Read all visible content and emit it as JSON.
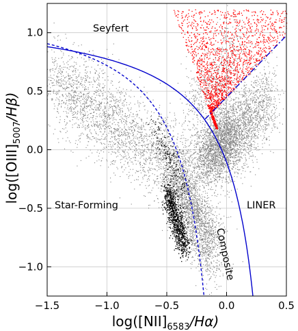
{
  "chart_data": {
    "type": "scatter",
    "title": "",
    "xlabel": "log([NII]_6583/Hα)",
    "ylabel": "log([OIII]_5007/Hβ)",
    "xlabel_parts": {
      "main": "log([NII]",
      "sub": "6583",
      "tail": "/Hα)"
    },
    "ylabel_parts": {
      "main": "log([OIII]",
      "sub": "5007",
      "tail": "/Hβ)"
    },
    "xlim": [
      -1.5,
      0.5
    ],
    "ylim": [
      -1.25,
      1.25
    ],
    "xticks": [
      -1.5,
      -1.0,
      -0.5,
      0.0,
      0.5
    ],
    "xtick_labels": [
      "−1.5",
      "−1.0",
      "−0.5",
      "0.0",
      "0.5"
    ],
    "yticks": [
      -1.0,
      -0.5,
      0.0,
      0.5,
      1.0
    ],
    "ytick_labels": [
      "−1.0",
      "−0.5",
      "0.0",
      "0.5",
      "1.0"
    ],
    "grid": true,
    "region_labels": {
      "seyfert": "Seyfert",
      "star_forming": "Star-Forming",
      "liner": "LINER",
      "composite": "Composite"
    },
    "series": [
      {
        "kind": "points",
        "color": "#808080",
        "desc": "all galaxies",
        "clusters": [
          {
            "x": [
              -1.45,
              -0.35
            ],
            "y": [
              0.6,
              -0.2
            ],
            "spread": 0.18,
            "n": 2600
          },
          {
            "x": [
              -0.45,
              -0.1
            ],
            "y": [
              -0.2,
              -0.9
            ],
            "spread": 0.14,
            "n": 2200
          },
          {
            "x": [
              -0.2,
              0.05
            ],
            "y": [
              -0.1,
              0.15
            ],
            "spread": 0.14,
            "n": 2000
          },
          {
            "x": [
              -0.05,
              0.35
            ],
            "y": [
              0.0,
              0.45
            ],
            "spread": 0.16,
            "n": 1700
          },
          {
            "x": [
              -0.3,
              0.1
            ],
            "y": [
              0.3,
              0.9
            ],
            "spread": 0.16,
            "n": 600
          }
        ]
      },
      {
        "kind": "points",
        "color": "#000000",
        "desc": "highlighted star-forming",
        "clusters": [
          {
            "x": [
              -0.6,
              -0.35
            ],
            "y": [
              0.2,
              -0.35
            ],
            "spread": 0.06,
            "n": 160
          },
          {
            "x": [
              -0.5,
              -0.35
            ],
            "y": [
              -0.35,
              -0.85
            ],
            "spread": 0.06,
            "n": 900
          }
        ]
      },
      {
        "kind": "points",
        "color": "#ff0000",
        "desc": "Seyfert selection",
        "x_range": [
          -0.3,
          0.05
        ],
        "y_range": [
          0.18,
          1.2
        ],
        "n": 1800
      }
    ],
    "curves": [
      {
        "name": "",
        "color": "#0000cc",
        "style": "dashed",
        "formula": "0.61/(x-0.05)+1.3",
        "x_range": [
          -1.5,
          -0.19
        ]
      },
      {
        "name": "",
        "color": "#0000cc",
        "style": "solid",
        "formula": "0.61/(x-0.47)+1.19",
        "x_range": [
          -1.5,
          0.22
        ]
      },
      {
        "name": "",
        "color": "#0000cc",
        "style": "dashdot",
        "formula": "1.05*x+0.45",
        "x_range": [
          -0.18,
          0.5
        ]
      }
    ]
  }
}
